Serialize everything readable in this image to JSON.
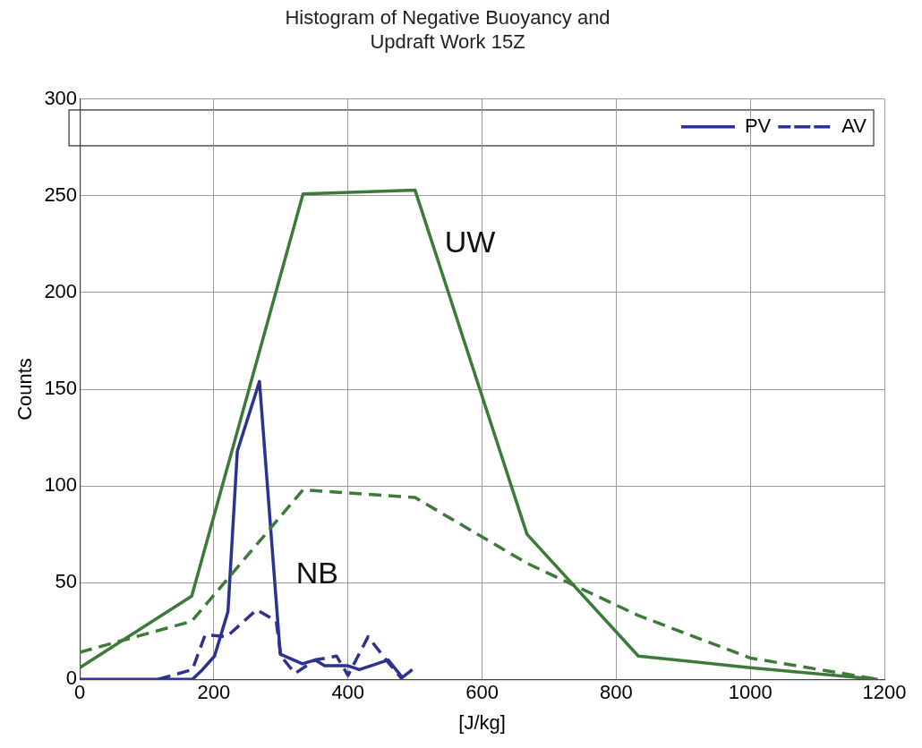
{
  "chart_data": {
    "type": "line",
    "title": "Histogram of Negative Buoyancy and\nUpdraft Work 15Z",
    "xlabel": "[J/kg]",
    "ylabel": "Counts",
    "xlim": [
      0,
      1200
    ],
    "xticks": [
      0,
      200,
      400,
      600,
      800,
      1000,
      1200
    ],
    "ylim": [
      0,
      300
    ],
    "yticks": [
      0,
      50,
      100,
      150,
      200,
      250,
      300
    ],
    "grid": true,
    "legend": "top right",
    "marker": "none",
    "series": [
      {
        "color": "#3d7a3a",
        "line_style": "solid",
        "x": [
          0,
          167,
          333,
          500,
          667,
          833,
          1000,
          1190
        ],
        "values": [
          6,
          43,
          251,
          253,
          75,
          12,
          6,
          0
        ]
      },
      {
        "color": "#3d7a3a",
        "line_style": "dashed",
        "x": [
          0,
          167,
          333,
          500,
          667,
          833,
          1000,
          1190
        ],
        "values": [
          14,
          30,
          98,
          94,
          60,
          33,
          11,
          0
        ]
      },
      {
        "name": "PV",
        "color": "#2b3290",
        "line_style": "solid",
        "x": [
          0,
          117,
          168,
          183,
          201,
          221,
          235,
          268,
          299,
          332,
          351,
          365,
          400,
          417,
          460,
          481,
          496
        ],
        "values": [
          0,
          0,
          0,
          5,
          12,
          35,
          118,
          154,
          13,
          8,
          10,
          7,
          7,
          5,
          10,
          1,
          5
        ]
      },
      {
        "name": "AV",
        "color": "#2b3290",
        "line_style": "dashed",
        "x": [
          117,
          168,
          187,
          219,
          264,
          293,
          300,
          321,
          351,
          383,
          400,
          430,
          457,
          481
        ],
        "values": [
          0,
          5,
          23,
          22,
          36,
          30,
          12,
          3,
          10,
          12,
          2,
          22,
          10,
          0
        ]
      }
    ],
    "annotations": [
      "UW",
      "NB"
    ]
  }
}
